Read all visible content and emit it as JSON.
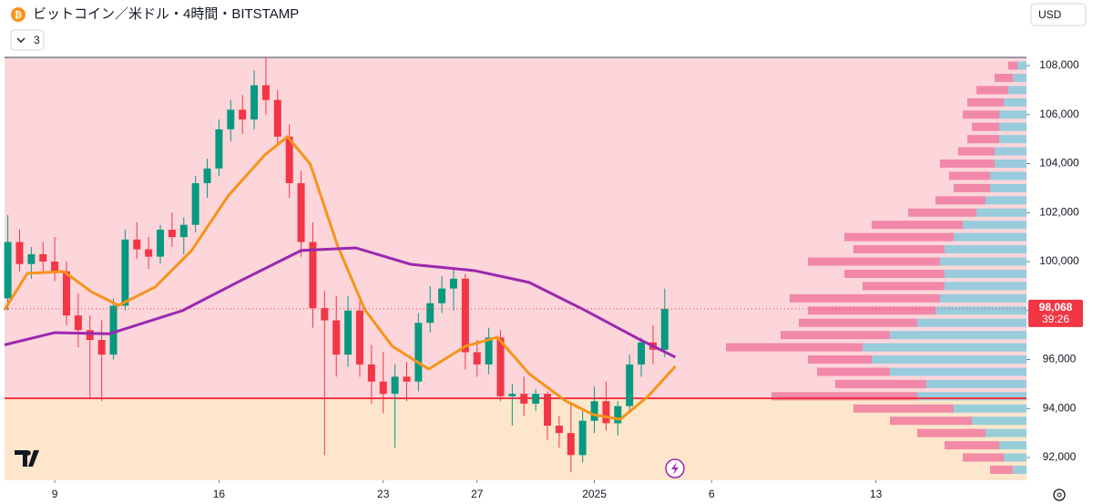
{
  "header": {
    "title": "ビットコイン／米ドル・4時間・BITSTAMP",
    "indicator_count": "3",
    "currency": "USD"
  },
  "chart_data": {
    "type": "candlestick",
    "x": [
      7,
      7.5,
      8,
      8.5,
      9,
      9.5,
      10,
      10.5,
      11,
      11.5,
      12,
      12.5,
      13,
      13.5,
      14,
      14.5,
      15,
      15.5,
      16,
      16.5,
      17,
      17.5,
      18,
      18.5,
      19,
      19.5,
      20,
      20.5,
      21,
      21.5,
      22,
      22.5,
      23,
      23.5,
      24,
      24.5,
      25,
      25.5,
      26,
      26.5,
      27,
      27.5,
      28,
      28.5,
      29,
      29.5,
      30,
      30.5,
      31,
      31.5,
      32,
      32.5,
      33,
      33.5,
      34,
      34.5,
      35
    ],
    "open": [
      98500,
      100800,
      99900,
      100300,
      100000,
      99600,
      97800,
      97200,
      96800,
      96200,
      98200,
      100900,
      100500,
      100200,
      101300,
      101000,
      101500,
      103200,
      103800,
      105400,
      106200,
      105800,
      107200,
      106600,
      105100,
      103200,
      100800,
      98100,
      97600,
      96200,
      98000,
      95800,
      95100,
      94600,
      95300,
      95100,
      97500,
      98300,
      98900,
      99300,
      96300,
      95800,
      96900,
      94500,
      94600,
      94200,
      94600,
      93300,
      93000,
      92100,
      93500,
      94300,
      93400,
      94100,
      95800,
      96700,
      96400
    ],
    "high": [
      101900,
      101300,
      100600,
      100800,
      101000,
      100000,
      98700,
      97800,
      97600,
      98500,
      101300,
      101600,
      101000,
      101500,
      102000,
      101800,
      103500,
      104200,
      105800,
      106600,
      106800,
      107800,
      108350,
      107000,
      105600,
      103700,
      101600,
      98800,
      98600,
      98600,
      98400,
      96600,
      96300,
      95800,
      95900,
      97900,
      99000,
      99400,
      99700,
      99500,
      96800,
      97300,
      97200,
      95000,
      95300,
      94800,
      94700,
      93700,
      94200,
      93900,
      94900,
      95100,
      94300,
      96200,
      96900,
      97400,
      98900
    ],
    "low": [
      98000,
      99600,
      99300,
      99600,
      99200,
      97400,
      96500,
      94400,
      94300,
      96000,
      98000,
      100100,
      99700,
      99900,
      100600,
      100300,
      101200,
      102600,
      103500,
      104900,
      105200,
      105400,
      106000,
      104800,
      102600,
      100200,
      97300,
      92100,
      95300,
      95700,
      95300,
      94200,
      93800,
      92400,
      94300,
      94700,
      97100,
      97900,
      98000,
      95600,
      95300,
      95400,
      94300,
      93300,
      93700,
      93900,
      92700,
      92400,
      91400,
      91800,
      93000,
      93100,
      92900,
      93900,
      95300,
      95800,
      96100
    ],
    "close": [
      100800,
      99900,
      100300,
      100000,
      99600,
      97800,
      97200,
      96800,
      96200,
      98200,
      100900,
      100500,
      100200,
      101300,
      101000,
      101500,
      103200,
      103800,
      105400,
      106200,
      105800,
      107200,
      106600,
      105100,
      103200,
      100800,
      98100,
      97600,
      96200,
      98000,
      95800,
      95100,
      94600,
      95300,
      95100,
      97500,
      98300,
      98900,
      99300,
      96300,
      95800,
      96900,
      94500,
      94600,
      94200,
      94600,
      93300,
      93000,
      92100,
      93500,
      94300,
      93400,
      94100,
      95800,
      96700,
      96400,
      98068
    ],
    "up_color": "#089981",
    "down_color": "#f23645",
    "xlim": [
      6.86,
      50.42
    ],
    "ylim": [
      91070,
      108335
    ],
    "xticks": [
      9,
      16,
      23,
      27,
      {
        "value": 32,
        "label": "2025"
      },
      {
        "value": 37,
        "label": "6"
      },
      {
        "value": 44,
        "label": "13"
      }
    ],
    "yticks": [
      {
        "value": 92000,
        "label": "92,000"
      },
      {
        "value": 94000,
        "label": "94,000"
      },
      {
        "value": 96000,
        "label": "96,000"
      },
      {
        "value": 98000,
        "label": "98,000"
      },
      {
        "value": 100000,
        "label": "100,000"
      },
      {
        "value": 102000,
        "label": "102,000"
      },
      {
        "value": 104000,
        "label": "104,000"
      },
      {
        "value": 106000,
        "label": "106,000"
      },
      {
        "value": 108000,
        "label": "108,000"
      }
    ],
    "moving_averages": [
      {
        "color": "#f7931a",
        "x": [
          6.86,
          7.83,
          9.39,
          10.56,
          11.72,
          13.28,
          14.83,
          16.39,
          17.95,
          18.92,
          19.89,
          21.06,
          22.22,
          23.39,
          24.94,
          26.5,
          27.86,
          29.22,
          30.78,
          31.95,
          33.11,
          34.28,
          35.45
        ],
        "values": [
          98030,
          99520,
          99590,
          98770,
          98210,
          98960,
          100450,
          102680,
          104350,
          105100,
          103980,
          100630,
          98030,
          96540,
          95610,
          96540,
          96910,
          95420,
          94310,
          93750,
          93560,
          94490,
          95720
        ]
      },
      {
        "color": "#9c27b0",
        "x": [
          6.86,
          9.0,
          11.33,
          14.45,
          16.78,
          19.5,
          21.83,
          24.17,
          26.89,
          29.22,
          31.56,
          33.89,
          35.45
        ],
        "values": [
          96600,
          97100,
          97050,
          98000,
          99150,
          100450,
          100560,
          99890,
          99630,
          99150,
          98030,
          96840,
          96100
        ]
      }
    ],
    "hline": {
      "value": 94419,
      "color": "#f23645"
    },
    "last_price": {
      "value": 98068,
      "label": "98,068"
    },
    "countdown": "39:26",
    "volume_profile": {
      "up_color": "#86c9dc",
      "down_color": "#ee7aa0",
      "prices": [
        91500,
        92000,
        92500,
        93000,
        93500,
        94000,
        94500,
        95000,
        95500,
        96000,
        96500,
        97000,
        97500,
        98000,
        98500,
        99000,
        99500,
        100000,
        100500,
        101000,
        101500,
        102000,
        102500,
        103000,
        103500,
        104000,
        104500,
        105000,
        105500,
        106000,
        106500,
        107000,
        107500,
        108000
      ],
      "up": [
        15,
        25,
        30,
        45,
        60,
        80,
        120,
        110,
        150,
        170,
        180,
        150,
        120,
        100,
        95,
        90,
        90,
        95,
        90,
        80,
        70,
        55,
        45,
        40,
        40,
        35,
        35,
        30,
        30,
        30,
        25,
        20,
        15,
        10
      ],
      "down": [
        25,
        45,
        60,
        75,
        90,
        110,
        160,
        100,
        80,
        70,
        150,
        120,
        130,
        140,
        165,
        90,
        110,
        145,
        100,
        120,
        100,
        75,
        55,
        40,
        45,
        60,
        40,
        35,
        30,
        40,
        40,
        35,
        20,
        10
      ]
    }
  }
}
